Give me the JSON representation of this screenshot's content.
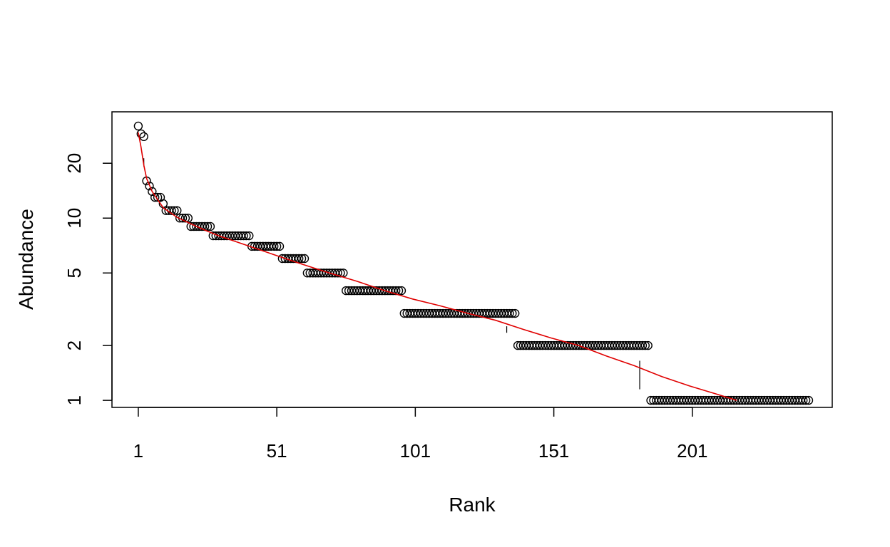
{
  "chart_data": {
    "type": "scatter",
    "title": "",
    "xlabel": "Rank",
    "ylabel": "Abundance",
    "x_scale": "linear",
    "y_scale": "log",
    "xlim": [
      -8.5,
      251.5
    ],
    "ylim": [
      0.915,
      38.3
    ],
    "x_ticks": [
      1,
      51,
      101,
      151,
      201
    ],
    "x_tick_labels": [
      "1",
      "51",
      "101",
      "151",
      "201"
    ],
    "y_ticks": [
      1,
      2,
      5,
      10,
      20
    ],
    "y_tick_labels": [
      "1",
      "2",
      "5",
      "10",
      "20"
    ],
    "grid": false,
    "legend": "none",
    "point_style": "open circle",
    "point_color": "#000000",
    "fit_color": "#e00000",
    "abundance_groups": [
      {
        "abundance": 32,
        "count": 1
      },
      {
        "abundance": 29,
        "count": 1
      },
      {
        "abundance": 28,
        "count": 1
      },
      {
        "abundance": 16,
        "count": 1
      },
      {
        "abundance": 15,
        "count": 1
      },
      {
        "abundance": 14,
        "count": 1
      },
      {
        "abundance": 13,
        "count": 3
      },
      {
        "abundance": 12,
        "count": 1
      },
      {
        "abundance": 11,
        "count": 5
      },
      {
        "abundance": 10,
        "count": 4
      },
      {
        "abundance": 9,
        "count": 8
      },
      {
        "abundance": 8,
        "count": 14
      },
      {
        "abundance": 7,
        "count": 11
      },
      {
        "abundance": 6,
        "count": 9
      },
      {
        "abundance": 5,
        "count": 14
      },
      {
        "abundance": 4,
        "count": 21
      },
      {
        "abundance": 3,
        "count": 41
      },
      {
        "abundance": 2,
        "count": 48
      },
      {
        "abundance": 1,
        "count": 58
      }
    ],
    "fit_line": {
      "x": [
        1,
        2,
        3,
        4,
        6,
        10,
        15,
        20,
        25,
        30,
        40,
        50,
        60,
        70,
        80,
        90,
        100,
        110,
        120,
        130,
        140,
        150,
        160,
        170,
        180,
        190,
        200,
        210,
        217
      ],
      "y": [
        29.5,
        24.5,
        19.5,
        16.5,
        14,
        11.4,
        10.1,
        9.3,
        8.6,
        8.0,
        7.1,
        6.3,
        5.6,
        5.0,
        4.5,
        4.0,
        3.6,
        3.3,
        3.0,
        2.75,
        2.45,
        2.2,
        2.0,
        1.75,
        1.55,
        1.35,
        1.2,
        1.08,
        1.0
      ]
    },
    "breakpoint_marks": [
      {
        "x": 3,
        "y_from": 19.2,
        "y_to": 21.3
      },
      {
        "x": 134,
        "y_from": 2.35,
        "y_to": 2.55
      },
      {
        "x": 182,
        "y_from": 1.15,
        "y_to": 1.65
      }
    ]
  }
}
